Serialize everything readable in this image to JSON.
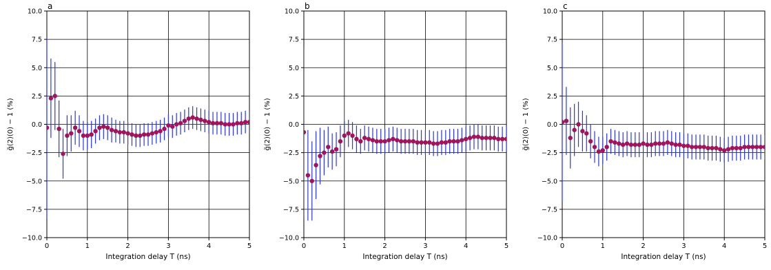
{
  "chart_data": [
    {
      "type": "scatter",
      "panel_label": "a",
      "xlabel": "Integration delay T (ns)",
      "ylabel": "g̃(2)(0) − 1 (%)",
      "xlim": [
        0,
        5
      ],
      "ylim": [
        -10,
        10
      ],
      "xticks": [
        "0",
        "1",
        "2",
        "3",
        "4",
        "5"
      ],
      "yticks": [
        "−10.0",
        "−7.5",
        "−5.0",
        "−2.5",
        "0.0",
        "2.5",
        "5.0",
        "7.5",
        "10.0"
      ],
      "grid": true,
      "marker_color": "#a0145a",
      "errorbar_color": "#2b35e0",
      "series": [
        {
          "x": [
            0.0,
            0.1,
            0.2,
            0.3,
            0.4,
            0.5,
            0.6,
            0.7,
            0.8,
            0.9,
            1.0,
            1.1,
            1.2,
            1.3,
            1.4,
            1.5,
            1.6,
            1.7,
            1.8,
            1.9,
            2.0,
            2.1,
            2.2,
            2.3,
            2.4,
            2.5,
            2.6,
            2.7,
            2.8,
            2.9,
            3.0,
            3.1,
            3.2,
            3.3,
            3.4,
            3.5,
            3.6,
            3.7,
            3.8,
            3.9,
            4.0,
            4.1,
            4.2,
            4.3,
            4.4,
            4.5,
            4.6,
            4.7,
            4.8,
            4.9,
            5.0
          ],
          "y": [
            -0.3,
            2.3,
            2.5,
            -0.4,
            -2.6,
            -1.0,
            -0.8,
            -0.3,
            -0.6,
            -1.0,
            -1.0,
            -0.9,
            -0.6,
            -0.3,
            -0.2,
            -0.3,
            -0.5,
            -0.6,
            -0.7,
            -0.7,
            -0.8,
            -0.9,
            -1.0,
            -1.0,
            -0.9,
            -0.9,
            -0.8,
            -0.7,
            -0.6,
            -0.4,
            -0.1,
            -0.2,
            0.0,
            0.1,
            0.3,
            0.5,
            0.6,
            0.5,
            0.4,
            0.3,
            0.2,
            0.1,
            0.1,
            0.1,
            0.0,
            0.0,
            0.0,
            0.1,
            0.1,
            0.2,
            0.2
          ],
          "yerr": [
            8.0,
            3.5,
            3.0,
            2.5,
            2.2,
            1.8,
            1.6,
            1.5,
            1.4,
            1.3,
            1.2,
            1.2,
            1.1,
            1.1,
            1.1,
            1.1,
            1.1,
            1.0,
            1.0,
            1.0,
            1.0,
            1.0,
            1.0,
            1.0,
            1.0,
            1.0,
            1.0,
            1.0,
            1.0,
            1.0,
            1.0,
            1.0,
            1.0,
            1.0,
            1.0,
            1.0,
            1.0,
            1.0,
            1.0,
            1.0,
            1.0,
            1.0,
            1.0,
            1.0,
            1.0,
            1.0,
            1.0,
            1.0,
            1.0,
            1.0,
            1.0
          ]
        }
      ]
    },
    {
      "type": "scatter",
      "panel_label": "b",
      "xlabel": "Integration delay T (ns)",
      "ylabel": "g̃(2)(0) − 1 (%)",
      "xlim": [
        0,
        5
      ],
      "ylim": [
        -10,
        10
      ],
      "xticks": [
        "0",
        "1",
        "2",
        "3",
        "4",
        "5"
      ],
      "yticks": [
        "−10.0",
        "−7.5",
        "−5.0",
        "−2.5",
        "0.0",
        "2.5",
        "5.0",
        "7.5",
        "10.0"
      ],
      "grid": true,
      "marker_color": "#a0145a",
      "errorbar_color": "#2b35e0",
      "series": [
        {
          "x": [
            0.0,
            0.1,
            0.2,
            0.3,
            0.4,
            0.5,
            0.6,
            0.7,
            0.8,
            0.9,
            1.0,
            1.1,
            1.2,
            1.3,
            1.4,
            1.5,
            1.6,
            1.7,
            1.8,
            1.9,
            2.0,
            2.1,
            2.2,
            2.3,
            2.4,
            2.5,
            2.6,
            2.7,
            2.8,
            2.9,
            3.0,
            3.1,
            3.2,
            3.3,
            3.4,
            3.5,
            3.6,
            3.7,
            3.8,
            3.9,
            4.0,
            4.1,
            4.2,
            4.3,
            4.4,
            4.5,
            4.6,
            4.7,
            4.8,
            4.9,
            5.0
          ],
          "y": [
            -0.7,
            -4.5,
            -5.0,
            -3.6,
            -2.8,
            -2.5,
            -2.0,
            -2.4,
            -2.2,
            -1.5,
            -1.0,
            -0.8,
            -1.0,
            -1.3,
            -1.5,
            -1.2,
            -1.3,
            -1.4,
            -1.5,
            -1.5,
            -1.5,
            -1.4,
            -1.3,
            -1.4,
            -1.5,
            -1.5,
            -1.5,
            -1.5,
            -1.6,
            -1.6,
            -1.6,
            -1.6,
            -1.7,
            -1.7,
            -1.6,
            -1.6,
            -1.5,
            -1.5,
            -1.5,
            -1.4,
            -1.3,
            -1.2,
            -1.1,
            -1.1,
            -1.2,
            -1.2,
            -1.2,
            -1.2,
            -1.3,
            -1.3,
            -1.3
          ],
          "yerr": [
            7.5,
            4.0,
            3.5,
            3.0,
            2.5,
            2.0,
            1.8,
            1.6,
            1.5,
            1.4,
            1.3,
            1.2,
            1.2,
            1.2,
            1.1,
            1.1,
            1.1,
            1.1,
            1.1,
            1.1,
            1.1,
            1.1,
            1.1,
            1.1,
            1.1,
            1.1,
            1.1,
            1.1,
            1.1,
            1.1,
            1.1,
            1.1,
            1.1,
            1.1,
            1.1,
            1.1,
            1.1,
            1.1,
            1.1,
            1.1,
            1.1,
            1.1,
            1.1,
            1.1,
            1.1,
            1.1,
            1.1,
            1.1,
            1.1,
            1.1,
            1.1
          ]
        }
      ]
    },
    {
      "type": "scatter",
      "panel_label": "c",
      "xlabel": "Integration delay T (ns)",
      "ylabel": "g̃(2)(0) − 1 (%)",
      "xlim": [
        0,
        5
      ],
      "ylim": [
        -10,
        10
      ],
      "xticks": [
        "0",
        "1",
        "2",
        "3",
        "4",
        "5"
      ],
      "yticks": [
        "−10.0",
        "−7.5",
        "−5.0",
        "−2.5",
        "0.0",
        "2.5",
        "5.0",
        "7.5",
        "10.0"
      ],
      "grid": true,
      "marker_color": "#a0145a",
      "errorbar_color": "#2b35e0",
      "series": [
        {
          "x": [
            0.0,
            0.1,
            0.2,
            0.3,
            0.4,
            0.5,
            0.6,
            0.7,
            0.8,
            0.9,
            1.0,
            1.1,
            1.2,
            1.3,
            1.4,
            1.5,
            1.6,
            1.7,
            1.8,
            1.9,
            2.0,
            2.1,
            2.2,
            2.3,
            2.4,
            2.5,
            2.6,
            2.7,
            2.8,
            2.9,
            3.0,
            3.1,
            3.2,
            3.3,
            3.4,
            3.5,
            3.6,
            3.7,
            3.8,
            3.9,
            4.0,
            4.1,
            4.2,
            4.3,
            4.4,
            4.5,
            4.6,
            4.7,
            4.8,
            4.9,
            5.0
          ],
          "y": [
            0.2,
            0.3,
            -1.2,
            -0.5,
            0.0,
            -0.6,
            -0.8,
            -1.5,
            -2.0,
            -2.4,
            -2.3,
            -2.0,
            -1.5,
            -1.6,
            -1.7,
            -1.8,
            -1.7,
            -1.8,
            -1.8,
            -1.8,
            -1.7,
            -1.8,
            -1.8,
            -1.7,
            -1.7,
            -1.7,
            -1.6,
            -1.7,
            -1.8,
            -1.8,
            -1.9,
            -1.9,
            -2.0,
            -2.0,
            -2.0,
            -2.0,
            -2.1,
            -2.1,
            -2.1,
            -2.2,
            -2.3,
            -2.2,
            -2.1,
            -2.1,
            -2.1,
            -2.0,
            -2.0,
            -2.0,
            -2.0,
            -2.0,
            -2.0
          ],
          "yerr": [
            7.0,
            3.0,
            2.7,
            2.3,
            2.0,
            1.8,
            1.6,
            1.5,
            1.4,
            1.3,
            1.2,
            1.2,
            1.1,
            1.1,
            1.1,
            1.1,
            1.1,
            1.1,
            1.1,
            1.1,
            1.1,
            1.1,
            1.1,
            1.1,
            1.1,
            1.1,
            1.1,
            1.1,
            1.1,
            1.1,
            1.1,
            1.1,
            1.1,
            1.1,
            1.1,
            1.1,
            1.1,
            1.1,
            1.1,
            1.1,
            1.1,
            1.1,
            1.1,
            1.1,
            1.1,
            1.1,
            1.1,
            1.1,
            1.1,
            1.1,
            1.1
          ]
        }
      ]
    }
  ]
}
